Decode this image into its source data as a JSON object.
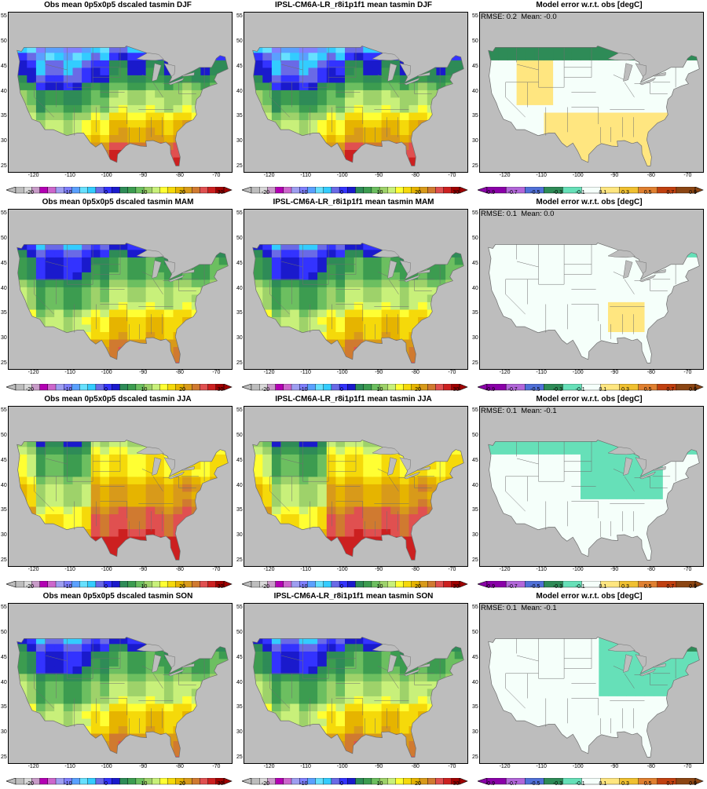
{
  "panels": [
    {
      "id": "obs-djf",
      "title": "Obs mean 0p5x0p5 dscaled tasmin DJF",
      "kind": "abs",
      "season": "DJF",
      "stats": ""
    },
    {
      "id": "mod-djf",
      "title": "IPSL-CM6A-LR_r8i1p1f1 mean tasmin DJF",
      "kind": "abs",
      "season": "DJF",
      "stats": ""
    },
    {
      "id": "err-djf",
      "title": "Model error w.r.t. obs [degC]",
      "kind": "err",
      "season": "DJF",
      "stats": "RMSE: 0.2  Mean: -0.0"
    },
    {
      "id": "obs-mam",
      "title": "Obs mean 0p5x0p5 dscaled tasmin MAM",
      "kind": "abs",
      "season": "MAM",
      "stats": ""
    },
    {
      "id": "mod-mam",
      "title": "IPSL-CM6A-LR_r8i1p1f1 mean tasmin MAM",
      "kind": "abs",
      "season": "MAM",
      "stats": ""
    },
    {
      "id": "err-mam",
      "title": "Model error w.r.t. obs [degC]",
      "kind": "err",
      "season": "MAM",
      "stats": "RMSE: 0.1  Mean: 0.0"
    },
    {
      "id": "obs-jja",
      "title": "Obs mean 0p5x0p5 dscaled tasmin JJA",
      "kind": "abs",
      "season": "JJA",
      "stats": ""
    },
    {
      "id": "mod-jja",
      "title": "IPSL-CM6A-LR_r8i1p1f1 mean tasmin JJA",
      "kind": "abs",
      "season": "JJA",
      "stats": ""
    },
    {
      "id": "err-jja",
      "title": "Model error w.r.t. obs [degC]",
      "kind": "err",
      "season": "JJA",
      "stats": "RMSE: 0.1  Mean: -0.1"
    },
    {
      "id": "obs-son",
      "title": "Obs mean 0p5x0p5 dscaled tasmin SON",
      "kind": "abs",
      "season": "SON",
      "stats": ""
    },
    {
      "id": "mod-son",
      "title": "IPSL-CM6A-LR_r8i1p1f1 mean tasmin SON",
      "kind": "abs",
      "season": "SON",
      "stats": ""
    },
    {
      "id": "err-son",
      "title": "Model error w.r.t. obs [degC]",
      "kind": "err",
      "season": "SON",
      "stats": "RMSE: 0.1  Mean: -0.1"
    }
  ],
  "axes": {
    "lat_ticks": [
      "55",
      "50",
      "45",
      "40",
      "35",
      "30",
      "25"
    ],
    "lon_ticks": [
      "-120",
      "-110",
      "-100",
      "-90",
      "-80",
      "-70"
    ]
  },
  "colorbar_abs": {
    "labels": [
      "-20",
      "-10",
      "0",
      "10",
      "20",
      "30"
    ],
    "colors": [
      "#bdbdbd",
      "#d9d9d9",
      "#c89bc8",
      "#b300b3",
      "#cc66cc",
      "#9e9ef0",
      "#8080ff",
      "#5aa0ff",
      "#66e0ff",
      "#33ccff",
      "#6a6ae6",
      "#3333ff",
      "#1a1acc",
      "#2e8b57",
      "#3c9c50",
      "#6cbf60",
      "#9ed26a",
      "#c8f07a",
      "#ffff33",
      "#f5d90a",
      "#e6b400",
      "#d89a1a",
      "#d07a30",
      "#e05050",
      "#cc2020",
      "#a00000"
    ]
  },
  "colorbar_err": {
    "labels": [
      "-0.9",
      "-0.7",
      "-0.5",
      "-0.3",
      "-0.1",
      "0.1",
      "0.3",
      "0.5",
      "0.7",
      "0.9"
    ],
    "colors": [
      "#8a00a8",
      "#b266d9",
      "#5070d8",
      "#2e8b57",
      "#66e0b8",
      "#f5fffa",
      "#ffe680",
      "#f0c030",
      "#e08030",
      "#c04010",
      "#8b4513"
    ]
  },
  "colors": {
    "land_mask": "#bdbdbd",
    "borders": "#6e6e6e"
  }
}
